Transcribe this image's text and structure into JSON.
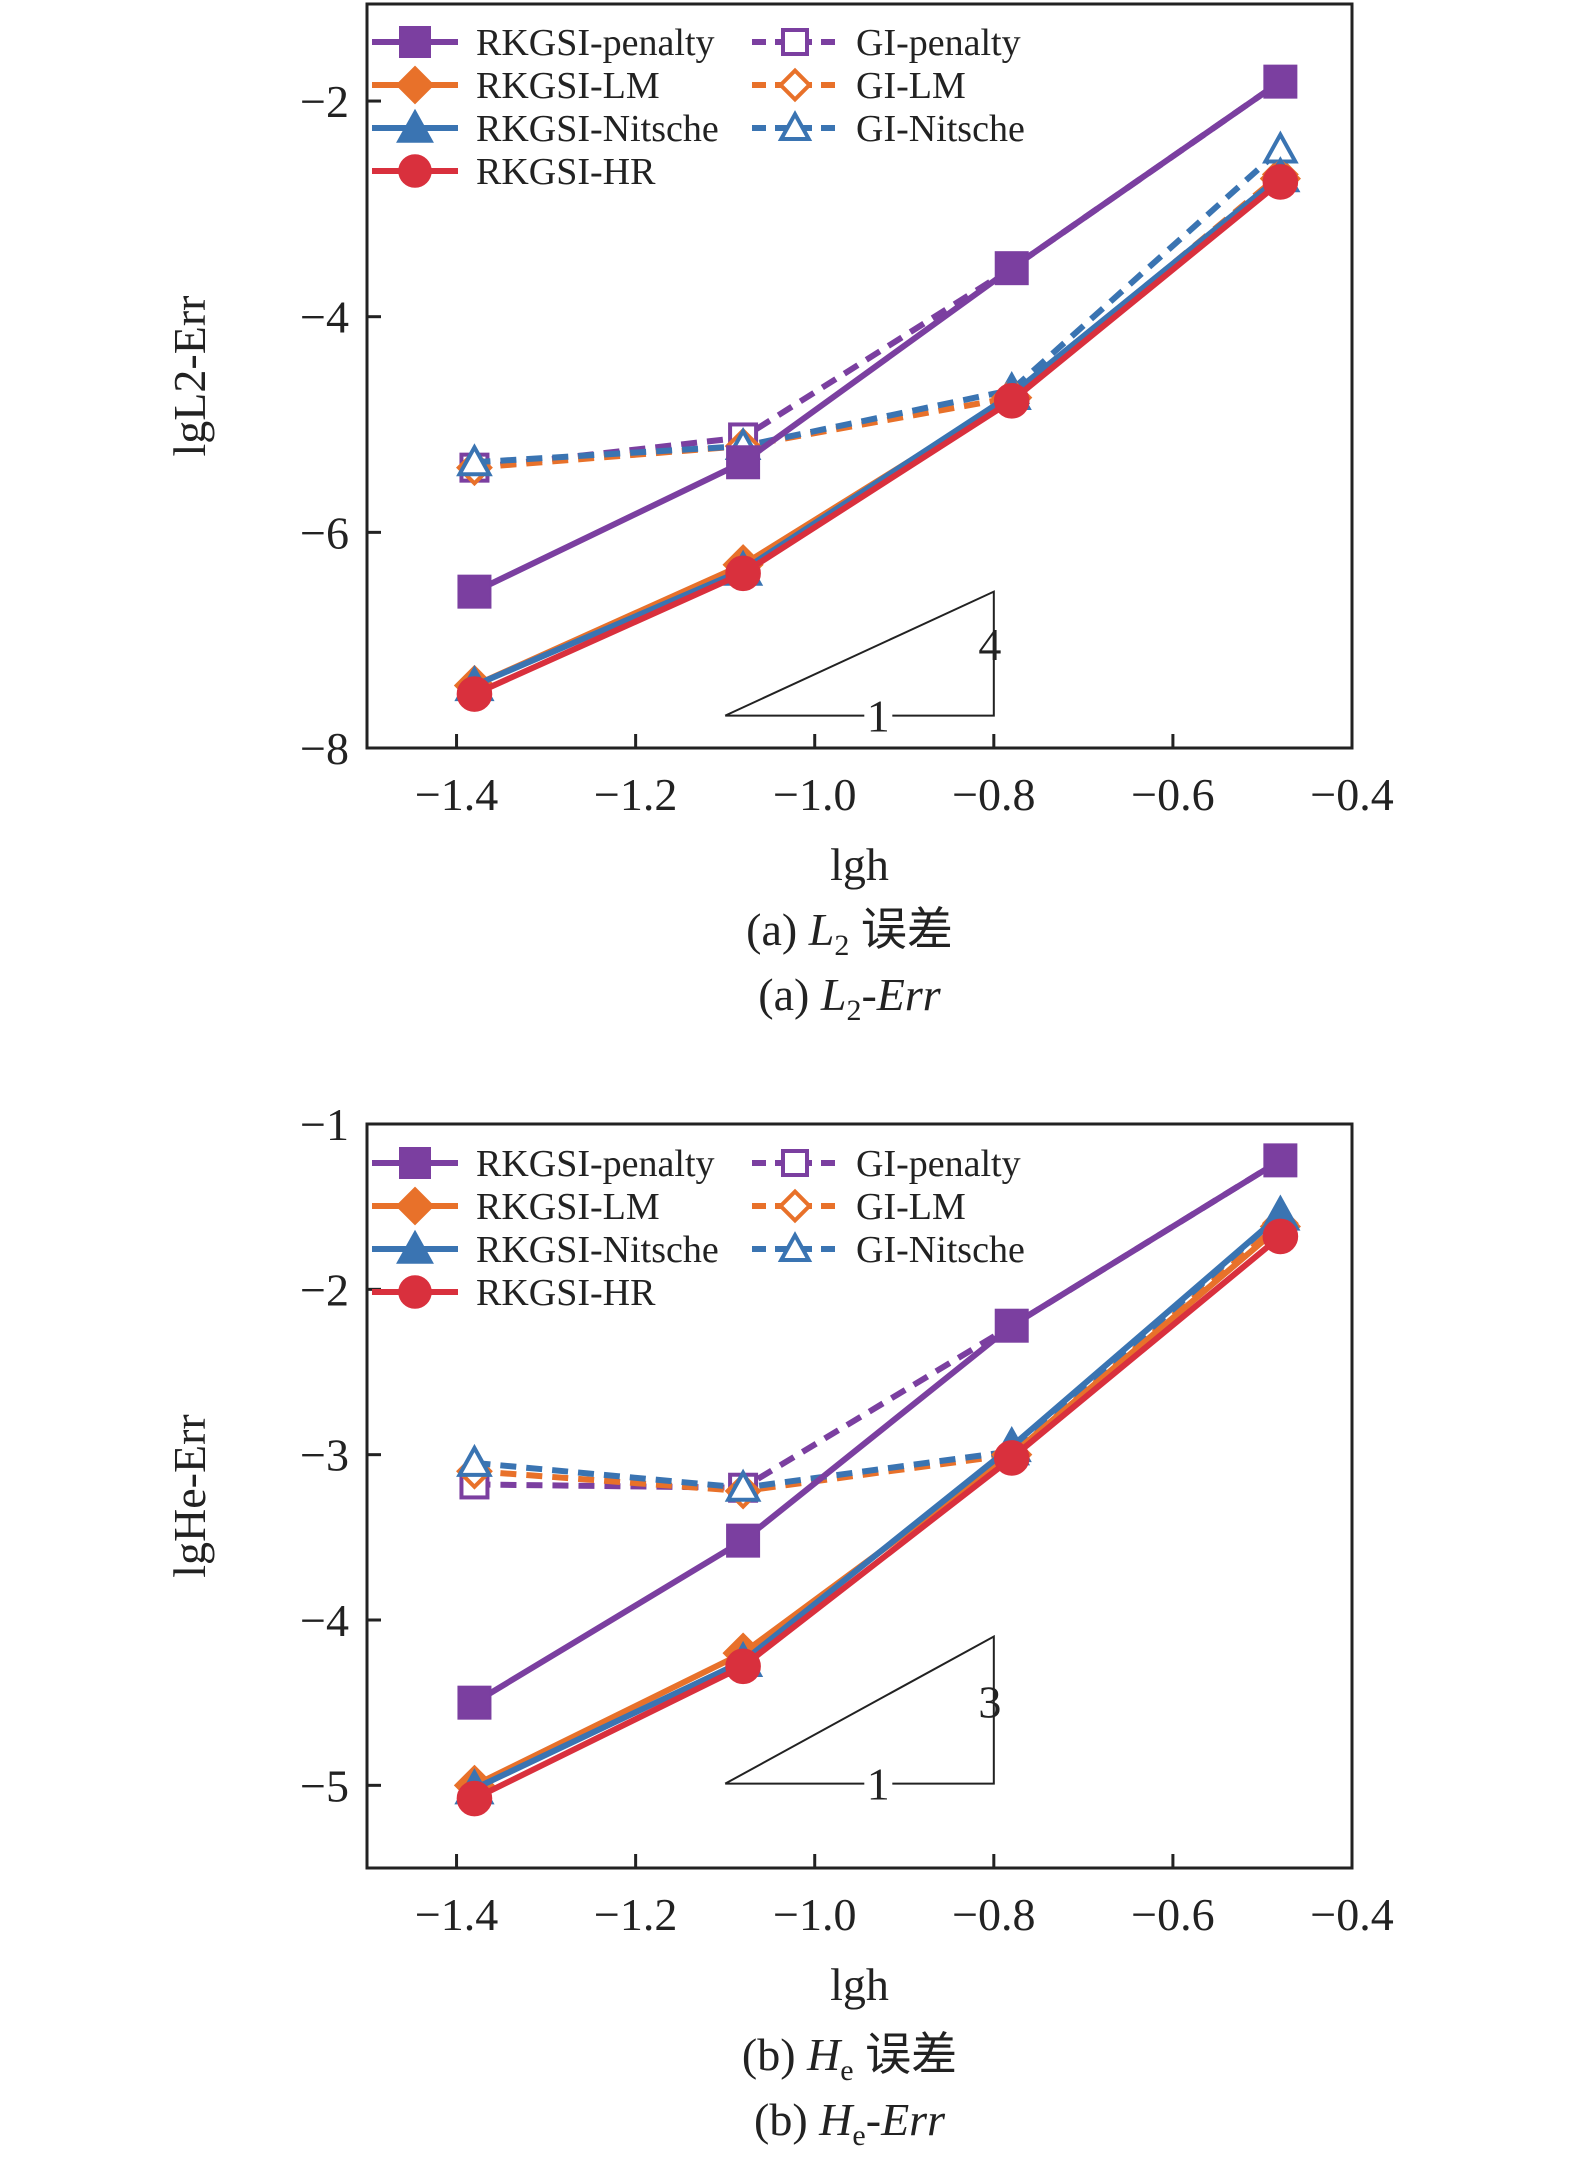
{
  "chart_data": [
    {
      "type": "line",
      "xlabel": "lgh",
      "ylabel": "lgL2-Err",
      "xlim": [
        -1.5,
        -0.4
      ],
      "ylim": [
        -8,
        -1.1
      ],
      "xticks": [
        -1.4,
        -1.2,
        -1.0,
        -0.8,
        -0.6,
        -0.4
      ],
      "xtick_labels": [
        "−1.4",
        "−1.2",
        "−1.0",
        "−0.8",
        "−0.6",
        "−0.4"
      ],
      "yticks": [
        -8,
        -6,
        -4,
        -2
      ],
      "ytick_labels": [
        "−8",
        "−6",
        "−4",
        "−2"
      ],
      "x": [
        -1.38,
        -1.08,
        -0.78,
        -0.48
      ],
      "series": [
        {
          "name": "RKGSI-penalty",
          "values": [
            -6.55,
            -5.35,
            -3.55,
            -1.82
          ],
          "color": "#7b3fa0",
          "marker": "square",
          "filled": true,
          "dashed": false
        },
        {
          "name": "RKGSI-LM",
          "values": [
            -7.42,
            -6.3,
            -4.75,
            -2.72
          ],
          "color": "#e8712a",
          "marker": "diamond",
          "filled": true,
          "dashed": false
        },
        {
          "name": "RKGSI-Nitsche",
          "values": [
            -7.42,
            -6.35,
            -4.72,
            -2.7
          ],
          "color": "#3a74b2",
          "marker": "triangle",
          "filled": true,
          "dashed": false
        },
        {
          "name": "RKGSI-HR",
          "values": [
            -7.5,
            -6.38,
            -4.78,
            -2.75
          ],
          "color": "#d9303d",
          "marker": "circle",
          "filled": true,
          "dashed": false
        },
        {
          "name": "GI-penalty",
          "values": [
            -5.4,
            -5.12,
            -3.55,
            -1.82
          ],
          "color": "#7b3fa0",
          "marker": "square",
          "filled": false,
          "dashed": true
        },
        {
          "name": "GI-LM",
          "values": [
            -5.4,
            -5.2,
            -4.75,
            -2.68
          ],
          "color": "#e8712a",
          "marker": "diamond",
          "filled": false,
          "dashed": true
        },
        {
          "name": "GI-Nitsche",
          "values": [
            -5.35,
            -5.2,
            -4.68,
            -2.45
          ],
          "color": "#3a74b2",
          "marker": "triangle",
          "filled": false,
          "dashed": true
        }
      ],
      "slope_triangle": {
        "run_label": "1",
        "rise_label": "4",
        "x": [
          -1.1,
          -0.8
        ],
        "y": [
          -7.7,
          -6.55
        ]
      },
      "legend": "top",
      "caption_cn_prefix": "(a)",
      "caption_cn_symbol": "L",
      "caption_cn_sub": "2",
      "caption_cn_suffix": "误差",
      "caption_en_prefix": "(a)",
      "caption_en_symbol": "L",
      "caption_en_sub": "2",
      "caption_en_suffix": "-Err"
    },
    {
      "type": "line",
      "xlabel": "lgh",
      "ylabel": "lgHe-Err",
      "xlim": [
        -1.5,
        -0.4
      ],
      "ylim": [
        -5.5,
        -1
      ],
      "xticks": [
        -1.4,
        -1.2,
        -1.0,
        -0.8,
        -0.6,
        -0.4
      ],
      "xtick_labels": [
        "−1.4",
        "−1.2",
        "−1.0",
        "−0.8",
        "−0.6",
        "−0.4"
      ],
      "yticks": [
        -5,
        -4,
        -3,
        -2,
        -1
      ],
      "ytick_labels": [
        "−5",
        "−4",
        "−3",
        "−2",
        "−1"
      ],
      "x": [
        -1.38,
        -1.08,
        -0.78,
        -0.48
      ],
      "series": [
        {
          "name": "RKGSI-penalty",
          "values": [
            -4.5,
            -3.52,
            -2.22,
            -1.22
          ],
          "color": "#7b3fa0",
          "marker": "square",
          "filled": true,
          "dashed": false
        },
        {
          "name": "RKGSI-LM",
          "values": [
            -5.0,
            -4.2,
            -3.0,
            -1.62
          ],
          "color": "#e8712a",
          "marker": "diamond",
          "filled": true,
          "dashed": false
        },
        {
          "name": "RKGSI-Nitsche",
          "values": [
            -5.02,
            -4.25,
            -2.95,
            -1.55
          ],
          "color": "#3a74b2",
          "marker": "triangle",
          "filled": true,
          "dashed": false
        },
        {
          "name": "RKGSI-HR",
          "values": [
            -5.08,
            -4.28,
            -3.02,
            -1.68
          ],
          "color": "#d9303d",
          "marker": "circle",
          "filled": true,
          "dashed": false
        },
        {
          "name": "GI-penalty",
          "values": [
            -3.18,
            -3.2,
            -2.22,
            -1.22
          ],
          "color": "#7b3fa0",
          "marker": "square",
          "filled": false,
          "dashed": true
        },
        {
          "name": "GI-LM",
          "values": [
            -3.1,
            -3.22,
            -3.0,
            -1.6
          ],
          "color": "#e8712a",
          "marker": "diamond",
          "filled": false,
          "dashed": true
        },
        {
          "name": "GI-Nitsche",
          "values": [
            -3.05,
            -3.2,
            -2.98,
            -1.55
          ],
          "color": "#3a74b2",
          "marker": "triangle",
          "filled": false,
          "dashed": true
        }
      ],
      "slope_triangle": {
        "run_label": "1",
        "rise_label": "3",
        "x": [
          -1.1,
          -0.8
        ],
        "y": [
          -4.99,
          -4.1
        ]
      },
      "legend": "top",
      "caption_cn_prefix": "(b)",
      "caption_cn_symbol": "H",
      "caption_cn_sub": "e",
      "caption_cn_suffix": "误差",
      "caption_en_prefix": "(b)",
      "caption_en_symbol": "H",
      "caption_en_sub": "e",
      "caption_en_suffix": "-Err"
    }
  ]
}
